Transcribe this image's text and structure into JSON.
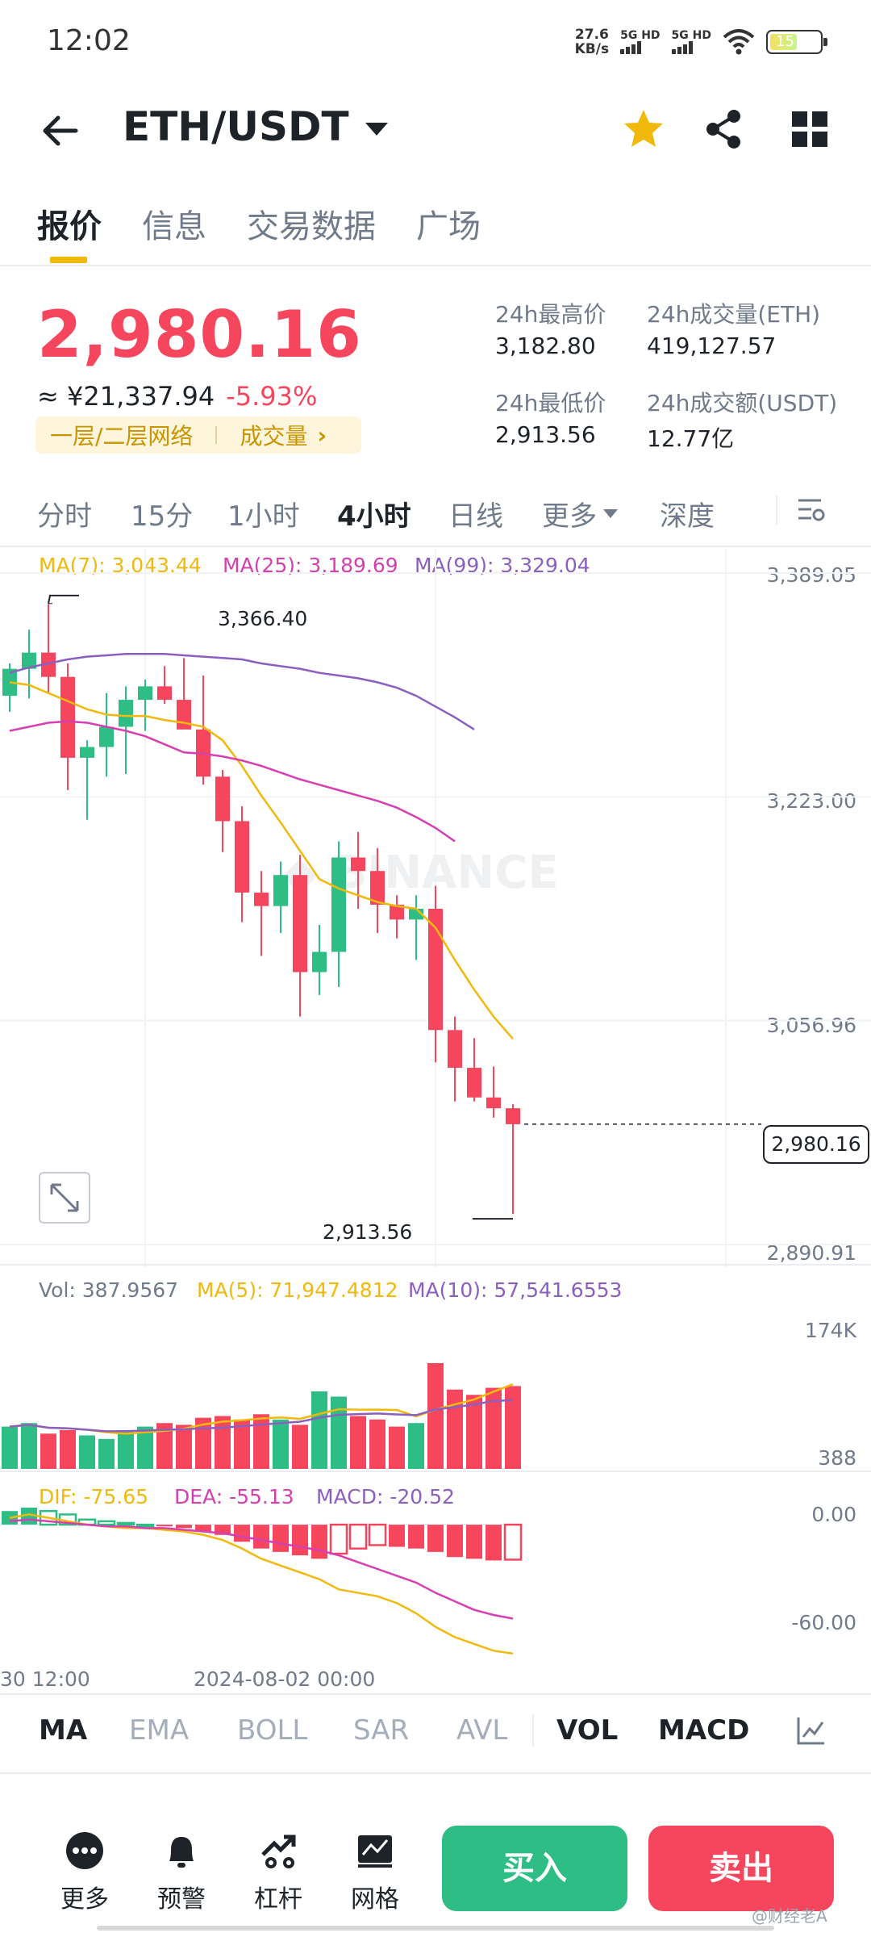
{
  "status_bar": {
    "time": "12:02",
    "net_speed_value": "27.6",
    "net_speed_unit": "KB/s",
    "sig1": "5G HD",
    "sig2": "5G HD",
    "battery": "15"
  },
  "header": {
    "pair": "ETH/USDT"
  },
  "tabs": [
    "报价",
    "信息",
    "交易数据",
    "广场"
  ],
  "ticker": {
    "price": "2,980.16",
    "cny": "≈ ¥21,337.94",
    "change": "-5.93%",
    "tag_network": "一层/二层网络",
    "tag_volume": "成交量",
    "high_label": "24h最高价",
    "high_value": "3,182.80",
    "low_label": "24h最低价",
    "low_value": "2,913.56",
    "vol_eth_label": "24h成交量(ETH)",
    "vol_eth_value": "419,127.57",
    "vol_usdt_label": "24h成交额(USDT)",
    "vol_usdt_value": "12.77亿"
  },
  "timeframes": [
    "分时",
    "15分",
    "1小时",
    "4小时",
    "日线",
    "更多",
    "深度"
  ],
  "colors": {
    "up": "#2ebd85",
    "down": "#f6465d",
    "ma7": "#f0b90b",
    "ma25": "#d63fb0",
    "ma99": "#8b5fbf",
    "accent": "#f0b90b"
  },
  "chart_data": {
    "type": "candlestick",
    "interval": "4小时",
    "price_axis": [
      "3,389.05",
      "3,223.00",
      "3,056.96",
      "2,890.91"
    ],
    "ylim": [
      2890.91,
      3389.05
    ],
    "ma_legend": {
      "ma7": "MA(7): 3,043.44",
      "ma25": "MA(25): 3,189.69",
      "ma99": "MA(99): 3,329.04"
    },
    "high_marker": "3,366.40",
    "low_marker": "2,913.56",
    "last_price": "2,980.16",
    "candles": [
      {
        "o": 3298,
        "h": 3322,
        "l": 3286,
        "c": 3318
      },
      {
        "o": 3318,
        "h": 3347,
        "l": 3296,
        "c": 3330
      },
      {
        "o": 3330,
        "h": 3366,
        "l": 3300,
        "c": 3312
      },
      {
        "o": 3312,
        "h": 3322,
        "l": 3228,
        "c": 3252
      },
      {
        "o": 3252,
        "h": 3265,
        "l": 3206,
        "c": 3260
      },
      {
        "o": 3260,
        "h": 3300,
        "l": 3238,
        "c": 3275
      },
      {
        "o": 3275,
        "h": 3305,
        "l": 3240,
        "c": 3295
      },
      {
        "o": 3295,
        "h": 3310,
        "l": 3272,
        "c": 3305
      },
      {
        "o": 3305,
        "h": 3320,
        "l": 3292,
        "c": 3295
      },
      {
        "o": 3295,
        "h": 3326,
        "l": 3274,
        "c": 3273
      },
      {
        "o": 3273,
        "h": 3313,
        "l": 3232,
        "c": 3238
      },
      {
        "o": 3238,
        "h": 3243,
        "l": 3182,
        "c": 3205
      },
      {
        "o": 3205,
        "h": 3216,
        "l": 3130,
        "c": 3152
      },
      {
        "o": 3152,
        "h": 3168,
        "l": 3105,
        "c": 3142
      },
      {
        "o": 3142,
        "h": 3175,
        "l": 3122,
        "c": 3165
      },
      {
        "o": 3165,
        "h": 3180,
        "l": 3060,
        "c": 3093
      },
      {
        "o": 3093,
        "h": 3128,
        "l": 3076,
        "c": 3108
      },
      {
        "o": 3108,
        "h": 3190,
        "l": 3082,
        "c": 3178
      },
      {
        "o": 3178,
        "h": 3197,
        "l": 3140,
        "c": 3168
      },
      {
        "o": 3168,
        "h": 3185,
        "l": 3122,
        "c": 3143
      },
      {
        "o": 3143,
        "h": 3150,
        "l": 3118,
        "c": 3132
      },
      {
        "o": 3132,
        "h": 3150,
        "l": 3102,
        "c": 3140
      },
      {
        "o": 3140,
        "h": 3157,
        "l": 3026,
        "c": 3050
      },
      {
        "o": 3050,
        "h": 3060,
        "l": 2997,
        "c": 3022
      },
      {
        "o": 3022,
        "h": 3044,
        "l": 2997,
        "c": 3000
      },
      {
        "o": 3000,
        "h": 3023,
        "l": 2985,
        "c": 2992
      },
      {
        "o": 2992,
        "h": 2995,
        "l": 2913.56,
        "c": 2980.16
      }
    ],
    "ma7": [
      3308,
      3306,
      3300,
      3294,
      3288,
      3284,
      3283,
      3283,
      3280,
      3278,
      3275,
      3265,
      3246,
      3224,
      3204,
      3183,
      3162,
      3155,
      3150,
      3145,
      3142,
      3140,
      3126,
      3102,
      3080,
      3060,
      3043.44
    ],
    "ma25": [
      3272,
      3275,
      3278,
      3279,
      3278,
      3275,
      3272,
      3268,
      3262,
      3256,
      3255,
      3253,
      3250,
      3246,
      3241,
      3236,
      3232,
      3228,
      3224,
      3220,
      3215,
      3208,
      3200,
      3190,
      3189.69
    ],
    "ma99": [
      3315,
      3319,
      3322,
      3325,
      3327,
      3328,
      3329,
      3329,
      3329,
      3328,
      3327,
      3326,
      3325,
      3322,
      3320,
      3318,
      3315,
      3313,
      3311,
      3308,
      3304,
      3298,
      3290,
      3282,
      3273,
      3329.04
    ],
    "x_labels": [
      "30 12:00",
      "2024-08-02 00:00"
    ]
  },
  "volume": {
    "legend_vol": "Vol: 387.9567",
    "legend_ma5": "MA(5): 71,947.4812",
    "legend_ma10": "MA(10): 57,541.6553",
    "axis_top": "174K",
    "axis_bottom": "388",
    "bars": [
      48,
      52,
      40,
      44,
      38,
      34,
      44,
      48,
      52,
      50,
      58,
      60,
      56,
      62,
      56,
      50,
      88,
      82,
      60,
      56,
      48,
      52,
      120,
      90,
      84,
      92,
      94
    ],
    "max": 174
  },
  "macd": {
    "legend_dif": "DIF: -75.65",
    "legend_dea": "DEA: -55.13",
    "legend_macd": "MACD: -20.52",
    "axis_top": "0.00",
    "axis_bottom": "-60.00",
    "hist": [
      8,
      10,
      8,
      6,
      3,
      2,
      1,
      0,
      -1,
      -2,
      -4,
      -6,
      -10,
      -14,
      -16,
      -18,
      -20,
      -17,
      -14,
      -12,
      -13,
      -14,
      -16,
      -19,
      -20,
      -21,
      -20.52
    ],
    "dif": [
      4,
      6,
      4,
      2,
      0,
      -1,
      -2,
      -2,
      -3,
      -4,
      -6,
      -9,
      -14,
      -20,
      -24,
      -28,
      -32,
      -38,
      -40,
      -42,
      -46,
      -52,
      -60,
      -66,
      -70,
      -74,
      -75.65
    ],
    "dea": [
      2,
      3,
      2,
      1,
      0,
      -1,
      -1,
      -2,
      -2,
      -3,
      -4,
      -5,
      -7,
      -9,
      -11,
      -13,
      -15,
      -18,
      -22,
      -26,
      -30,
      -34,
      -40,
      -45,
      -50,
      -53,
      -55.13
    ]
  },
  "indicators": [
    "MA",
    "EMA",
    "BOLL",
    "SAR",
    "AVL",
    "VOL",
    "MACD"
  ],
  "bottom_bar": {
    "more": "更多",
    "alert": "预警",
    "leverage": "杠杆",
    "grid": "网格",
    "buy": "买入",
    "sell": "卖出"
  },
  "watermark_text": "@财经老A"
}
